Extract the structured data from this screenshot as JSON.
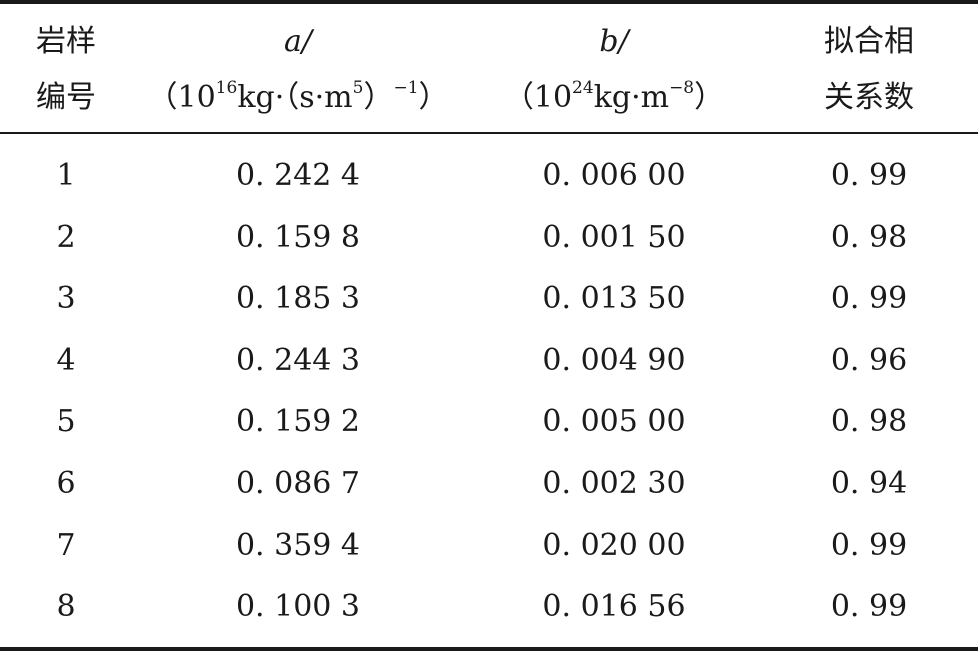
{
  "table": {
    "headers": {
      "sample_line1": "岩样",
      "sample_line2": "编号",
      "a_label": "a/",
      "a_unit_open": "（10",
      "a_unit_exp": "16",
      "a_unit_mid": "kg·（s·m",
      "a_unit_exp2": "5",
      "a_unit_close": "）",
      "a_unit_exp3": "−1",
      "a_unit_end": "）",
      "b_label": "b/",
      "b_unit_open": "（10",
      "b_unit_exp": "24",
      "b_unit_mid": "kg·m",
      "b_unit_exp2": "−8",
      "b_unit_end": "）",
      "fit_line1": "拟合相",
      "fit_line2": "关系数"
    },
    "rows": [
      {
        "id": "1",
        "a": "0. 242 4",
        "b": "0. 006 00",
        "r": "0. 99"
      },
      {
        "id": "2",
        "a": "0. 159 8",
        "b": "0. 001 50",
        "r": "0. 98"
      },
      {
        "id": "3",
        "a": "0. 185 3",
        "b": "0. 013 50",
        "r": "0. 99"
      },
      {
        "id": "4",
        "a": "0. 244 3",
        "b": "0. 004 90",
        "r": "0. 96"
      },
      {
        "id": "5",
        "a": "0. 159 2",
        "b": "0. 005 00",
        "r": "0. 98"
      },
      {
        "id": "6",
        "a": "0. 086 7",
        "b": "0. 002 30",
        "r": "0. 94"
      },
      {
        "id": "7",
        "a": "0. 359 4",
        "b": "0. 020 00",
        "r": "0. 99"
      },
      {
        "id": "8",
        "a": "0. 100 3",
        "b": "0. 016 56",
        "r": "0. 99"
      }
    ]
  }
}
